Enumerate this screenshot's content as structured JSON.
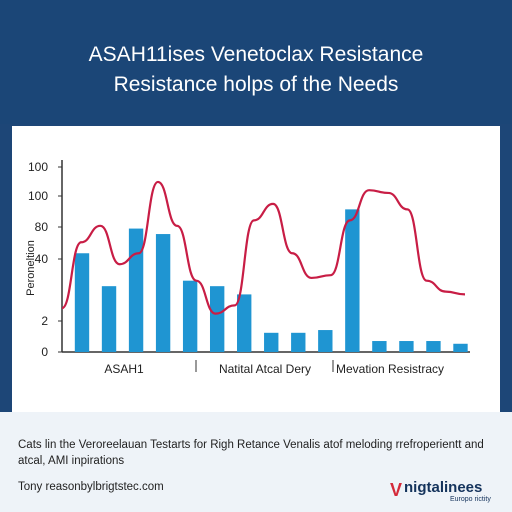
{
  "header": {
    "title_line1": "ASAH11ises Venetoclax Resistance",
    "title_line2": "Resistance holps of the Needs"
  },
  "chart_data": {
    "type": "bar+line",
    "title": "",
    "xlabel": "",
    "ylabel": "Peroneltion",
    "y_ticks": [
      "100",
      "100",
      "80",
      "40",
      "2",
      "0"
    ],
    "group_labels": [
      "ASAH1",
      "Natital Atcal Dery",
      "Mevation Resistracy"
    ],
    "bars": [
      36,
      24,
      45,
      43,
      26,
      24,
      21,
      7,
      7,
      8,
      52,
      4,
      4,
      4,
      3
    ],
    "line_y": [
      16,
      40,
      46,
      32,
      36,
      62,
      46,
      26,
      14,
      17,
      48,
      54,
      36,
      27,
      28,
      48,
      59,
      58,
      52,
      26,
      22,
      21
    ],
    "colors": {
      "bar": "#1f95d2",
      "line": "#c81d45",
      "axis": "#333333"
    },
    "grid": false,
    "legend": "none"
  },
  "footer": {
    "caption": "Cats lin the Veroreelauan Testarts for Righ Retance Venalis atof meloding rrefroperientt and atcal, AMI inpirations",
    "source": "Tony reasonbylbrigtstec.com",
    "logo_mark": "V",
    "logo_name": "nigtalinees",
    "logo_sub": "Europo rictity"
  }
}
